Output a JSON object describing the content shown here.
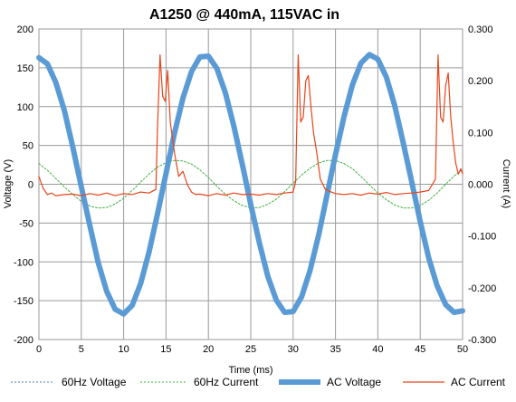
{
  "chart_data": {
    "type": "line",
    "title": "A1250 @ 440mA, 115VAC in",
    "xlabel": "Time (ms)",
    "ylabel": "Voltage (V)",
    "y2label": "Current (A)",
    "xlim": [
      0,
      50
    ],
    "ylim": [
      -200,
      200
    ],
    "y2lim": [
      -0.3,
      0.3
    ],
    "grid": true,
    "legend_position": "bottom",
    "x_ticks": [
      "0",
      "5",
      "10",
      "15",
      "20",
      "25",
      "30",
      "35",
      "40",
      "45",
      "50"
    ],
    "y_ticks": [
      "200",
      "150",
      "100",
      "50",
      "0",
      "-50",
      "-100",
      "-150",
      "-200"
    ],
    "y2_ticks": [
      "0.300",
      "0.200",
      "0.100",
      "0.000",
      "-0.100",
      "-0.200",
      "-0.300"
    ],
    "series": [
      {
        "name": "60Hz Voltage",
        "axis": "left",
        "color": "#4a7ebb",
        "style": "dotted",
        "x": [
          0,
          1,
          2,
          3,
          4,
          5,
          6,
          7,
          8,
          9,
          10,
          11,
          12,
          13,
          14,
          15,
          16,
          17,
          18,
          19,
          20,
          21,
          22,
          23,
          24,
          25,
          26,
          27,
          28,
          29,
          30,
          31,
          32,
          33,
          34,
          35,
          36,
          37,
          38,
          39,
          40,
          41,
          42,
          43,
          44,
          45,
          46,
          47,
          48,
          49,
          50
        ],
        "values": [
          163,
          155,
          131,
          95,
          48,
          -3,
          -53,
          -101,
          -138,
          -161,
          -167,
          -156,
          -128,
          -87,
          -38,
          14,
          66,
          111,
          145,
          164,
          165,
          149,
          118,
          75,
          26,
          -26,
          -75,
          -118,
          -149,
          -165,
          -164,
          -145,
          -111,
          -66,
          -14,
          38,
          87,
          128,
          156,
          167,
          161,
          138,
          101,
          53,
          3,
          -48,
          -95,
          -131,
          -155,
          -165,
          -163
        ]
      },
      {
        "name": "60Hz Current",
        "axis": "right",
        "color": "#3fb23f",
        "style": "dotted",
        "x": [
          0,
          1,
          2,
          3,
          4,
          5,
          6,
          7,
          8,
          9,
          10,
          11,
          12,
          13,
          14,
          15,
          16,
          17,
          18,
          19,
          20,
          21,
          22,
          23,
          24,
          25,
          26,
          27,
          28,
          29,
          30,
          31,
          32,
          33,
          34,
          35,
          36,
          37,
          38,
          39,
          40,
          41,
          42,
          43,
          44,
          45,
          46,
          47,
          48,
          49,
          50
        ],
        "values": [
          0.04,
          0.027,
          0.011,
          -0.005,
          -0.02,
          -0.033,
          -0.042,
          -0.046,
          -0.045,
          -0.038,
          -0.027,
          -0.012,
          0.004,
          0.02,
          0.033,
          0.042,
          0.046,
          0.045,
          0.039,
          0.028,
          0.013,
          -0.004,
          -0.019,
          -0.032,
          -0.041,
          -0.046,
          -0.045,
          -0.039,
          -0.029,
          -0.014,
          0.002,
          0.018,
          0.031,
          0.041,
          0.046,
          0.046,
          0.04,
          0.03,
          0.015,
          -0.001,
          -0.017,
          -0.03,
          -0.04,
          -0.046,
          -0.046,
          -0.041,
          -0.031,
          -0.017,
          0.0,
          0.016,
          0.029
        ]
      },
      {
        "name": "AC Voltage",
        "axis": "left",
        "color": "#5b9bd5",
        "style": "thick",
        "x": [
          0,
          1,
          2,
          3,
          4,
          5,
          6,
          7,
          8,
          9,
          10,
          11,
          12,
          13,
          14,
          15,
          16,
          17,
          18,
          19,
          20,
          21,
          22,
          23,
          24,
          25,
          26,
          27,
          28,
          29,
          30,
          31,
          32,
          33,
          34,
          35,
          36,
          37,
          38,
          39,
          40,
          41,
          42,
          43,
          44,
          45,
          46,
          47,
          48,
          49,
          50
        ],
        "values": [
          163,
          155,
          131,
          95,
          48,
          -3,
          -53,
          -101,
          -138,
          -161,
          -167,
          -156,
          -128,
          -87,
          -38,
          14,
          66,
          111,
          145,
          164,
          165,
          149,
          118,
          75,
          26,
          -26,
          -75,
          -118,
          -149,
          -165,
          -164,
          -145,
          -111,
          -66,
          -14,
          38,
          87,
          128,
          156,
          167,
          161,
          138,
          101,
          53,
          3,
          -48,
          -95,
          -131,
          -155,
          -165,
          -163
        ]
      },
      {
        "name": "AC Current",
        "axis": "right",
        "color": "#e8441a",
        "style": "solid",
        "x": [
          0,
          0.5,
          1,
          1.5,
          2,
          3,
          4,
          5,
          6,
          7,
          8,
          9,
          10,
          11,
          12,
          13,
          13.8,
          14.0,
          14.3,
          14.6,
          14.9,
          15.2,
          15.5,
          16.0,
          16.5,
          17.0,
          17.5,
          18.0,
          18.5,
          19,
          20,
          21,
          22,
          23,
          24,
          25,
          26,
          27,
          28,
          29,
          30,
          30.3,
          30.6,
          30.9,
          31.2,
          31.5,
          31.8,
          32.1,
          32.4,
          32.8,
          33.2,
          33.8,
          34.5,
          35,
          36,
          37,
          38,
          39,
          40,
          41,
          42,
          43,
          44,
          45,
          46,
          46.8,
          47.1,
          47.4,
          47.7,
          48.0,
          48.3,
          48.6,
          48.9,
          49.2,
          49.5,
          49.8,
          50
        ],
        "values": [
          0.015,
          -0.008,
          -0.02,
          -0.017,
          -0.022,
          -0.02,
          -0.019,
          -0.022,
          -0.018,
          -0.021,
          -0.017,
          -0.022,
          -0.018,
          -0.02,
          -0.015,
          -0.017,
          -0.01,
          0.11,
          0.25,
          0.17,
          0.16,
          0.22,
          0.12,
          0.06,
          0.015,
          0.025,
          0.0,
          -0.015,
          -0.02,
          -0.019,
          -0.022,
          -0.018,
          -0.021,
          -0.017,
          -0.02,
          -0.019,
          -0.021,
          -0.018,
          -0.02,
          -0.017,
          -0.015,
          0.005,
          0.25,
          0.12,
          0.13,
          0.2,
          0.21,
          0.15,
          0.1,
          0.06,
          0.01,
          -0.01,
          -0.015,
          -0.018,
          -0.02,
          -0.018,
          -0.021,
          -0.017,
          -0.019,
          -0.016,
          -0.02,
          -0.018,
          -0.017,
          -0.015,
          -0.012,
          0.01,
          0.25,
          0.13,
          0.12,
          0.19,
          0.215,
          0.13,
          0.08,
          0.04,
          0.02,
          0.03,
          0.02
        ]
      }
    ]
  }
}
